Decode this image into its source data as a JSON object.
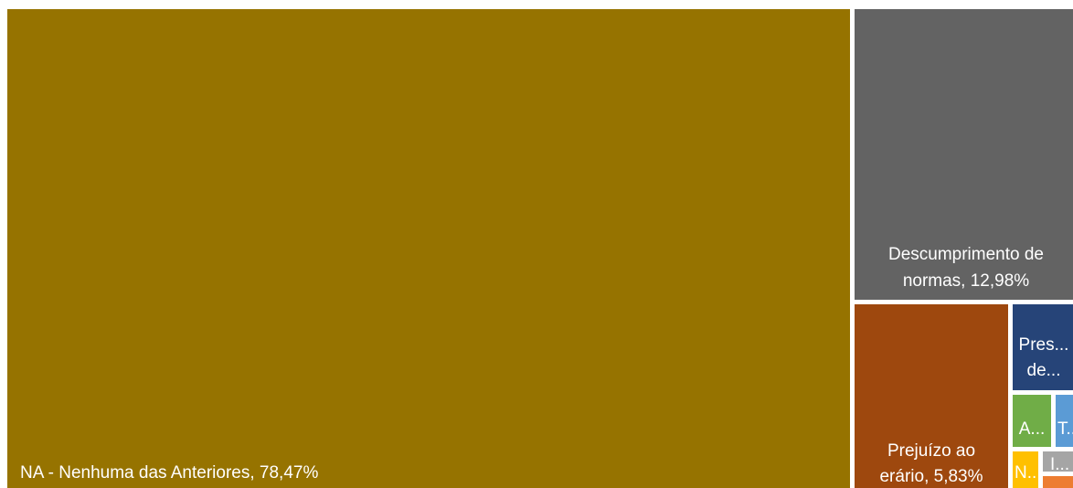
{
  "chart_data": {
    "type": "treemap",
    "categories": [
      "NA - Nenhuma das Anteriores",
      "Descumprimento de normas",
      "Prejuízo ao erário",
      "Pres... de...",
      "A...",
      "T...",
      "N...",
      "I...",
      ""
    ],
    "values": [
      78.47,
      12.98,
      5.83,
      null,
      null,
      null,
      null,
      null,
      null
    ],
    "value_labels": [
      "78,47%",
      "12,98%",
      "5,83%",
      "",
      "",
      "",
      "",
      "",
      ""
    ],
    "display_labels": [
      "NA - Nenhuma das Anteriores, 78,47%",
      "Descumprimento de normas, 12,98%",
      "Prejuízo ao erário, 5,83%",
      "Pres... de...",
      "A...",
      "T...",
      "N...",
      "I...",
      ""
    ],
    "colors": [
      "#967300",
      "#636363",
      "#9e480e",
      "#264478",
      "#70ad47",
      "#5b9bd5",
      "#ffc000",
      "#a5a5a5",
      "#ed7d31"
    ],
    "title": "",
    "legend": "none"
  }
}
